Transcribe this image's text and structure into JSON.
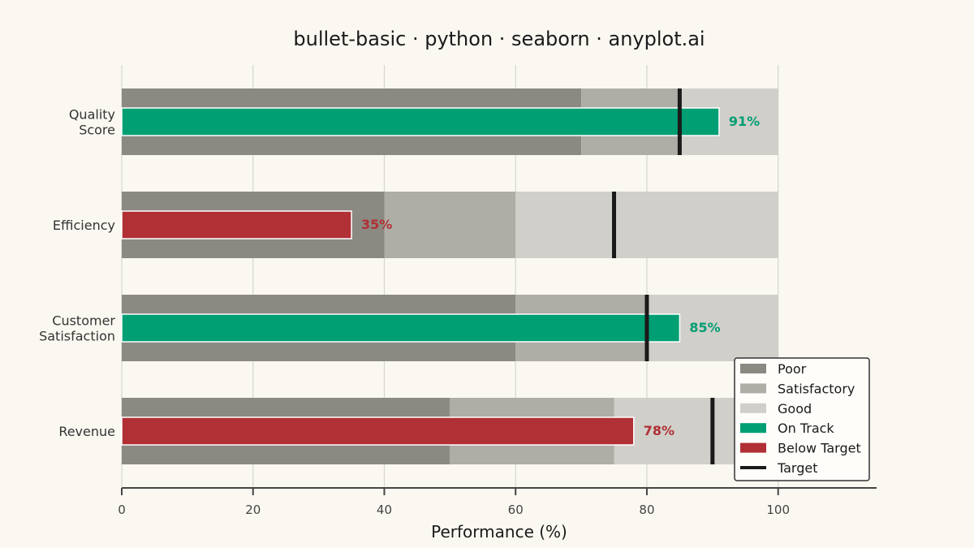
{
  "chart_data": {
    "type": "bullet",
    "title": "bullet-basic · python · seaborn · anyplot.ai",
    "xlabel": "Performance (%)",
    "ylabel": "",
    "xlim": [
      0,
      115
    ],
    "x_ticks": [
      0,
      20,
      40,
      60,
      80,
      100
    ],
    "grid": "vertical",
    "legend_position": "lower-right",
    "metrics": [
      {
        "label": "Quality\nScore",
        "value": 91,
        "target": 85,
        "ranges": [
          70,
          85,
          100
        ],
        "status": "On Track",
        "value_label": "91%"
      },
      {
        "label": "Efficiency",
        "value": 35,
        "target": 75,
        "ranges": [
          40,
          60,
          100
        ],
        "status": "Below Target",
        "value_label": "35%"
      },
      {
        "label": "Customer\nSatisfaction",
        "value": 85,
        "target": 80,
        "ranges": [
          60,
          80,
          100
        ],
        "status": "On Track",
        "value_label": "85%"
      },
      {
        "label": "Revenue",
        "value": 78,
        "target": 90,
        "ranges": [
          50,
          75,
          100
        ],
        "status": "Below Target",
        "value_label": "78%"
      }
    ],
    "legend": [
      {
        "label": "Poor",
        "kind": "patch",
        "color": "#8B8A82"
      },
      {
        "label": "Satisfactory",
        "kind": "patch",
        "color": "#AEADA6"
      },
      {
        "label": "Good",
        "kind": "patch",
        "color": "#D0CFCA"
      },
      {
        "label": "On Track",
        "kind": "patch",
        "color": "#009E73"
      },
      {
        "label": "Below Target",
        "kind": "patch",
        "color": "#B03035"
      },
      {
        "label": "Target",
        "kind": "line",
        "color": "#1A1A1A"
      }
    ],
    "colors": {
      "poor": "#8B8A82",
      "satisfactory": "#AEADA6",
      "good": "#D0CFCA",
      "on_track": "#009E73",
      "below_target": "#B03035",
      "target": "#1A1A1A",
      "background": "#FAF8F1"
    }
  }
}
